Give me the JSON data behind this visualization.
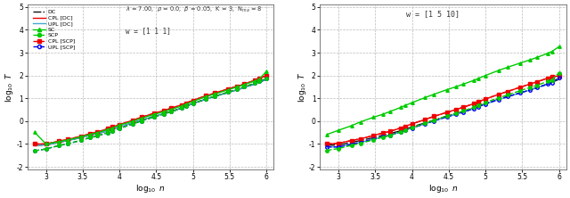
{
  "w_left": "w = [1 1 1]",
  "w_right": "w = [1 5 10]",
  "params_text": "λ = 7.00,  ρ = 0.0,  β = 0.05,  K = 3,  N_ma = 8",
  "xlim": [
    2.75,
    6.1
  ],
  "ylim": [
    -2.1,
    5.1
  ],
  "yticks": [
    -2,
    -1,
    0,
    1,
    2,
    3,
    4,
    5
  ],
  "xticks": [
    3,
    3.5,
    4,
    4.5,
    5,
    5.5,
    6
  ],
  "x_values": [
    2.845,
    3.0,
    3.176,
    3.301,
    3.477,
    3.602,
    3.699,
    3.845,
    3.903,
    4.0,
    4.176,
    4.301,
    4.477,
    4.602,
    4.699,
    4.845,
    4.903,
    5.0,
    5.176,
    5.301,
    5.477,
    5.602,
    5.699,
    5.845,
    5.903,
    6.0
  ],
  "left": {
    "DC": [
      -1.05,
      -1.05,
      -0.93,
      -0.85,
      -0.72,
      -0.62,
      -0.55,
      -0.42,
      -0.36,
      -0.25,
      -0.08,
      0.05,
      0.22,
      0.33,
      0.42,
      0.57,
      0.65,
      0.77,
      0.96,
      1.08,
      1.25,
      1.37,
      1.47,
      1.63,
      1.7,
      1.83
    ],
    "CPL_DC": [
      -1.0,
      -1.0,
      -0.88,
      -0.8,
      -0.66,
      -0.55,
      -0.48,
      -0.33,
      -0.26,
      -0.15,
      0.03,
      0.17,
      0.35,
      0.46,
      0.56,
      0.71,
      0.79,
      0.91,
      1.11,
      1.23,
      1.41,
      1.53,
      1.63,
      1.79,
      1.87,
      2.0
    ],
    "UPL_DC": [
      -1.05,
      -1.05,
      -0.93,
      -0.85,
      -0.72,
      -0.62,
      -0.55,
      -0.42,
      -0.36,
      -0.25,
      -0.08,
      0.05,
      0.22,
      0.33,
      0.42,
      0.57,
      0.65,
      0.77,
      0.96,
      1.08,
      1.25,
      1.37,
      1.47,
      1.63,
      1.7,
      1.83
    ],
    "SC": [
      -0.48,
      -1.0,
      -0.9,
      -0.82,
      -0.69,
      -0.58,
      -0.51,
      -0.36,
      -0.3,
      -0.18,
      -0.01,
      0.13,
      0.3,
      0.41,
      0.51,
      0.66,
      0.74,
      0.86,
      1.07,
      1.19,
      1.37,
      1.5,
      1.6,
      1.76,
      1.84,
      2.18
    ],
    "SCP": [
      -1.3,
      -1.22,
      -1.07,
      -0.99,
      -0.84,
      -0.72,
      -0.65,
      -0.5,
      -0.43,
      -0.32,
      -0.13,
      0.01,
      0.19,
      0.31,
      0.41,
      0.56,
      0.64,
      0.77,
      0.97,
      1.09,
      1.27,
      1.4,
      1.5,
      1.67,
      1.74,
      1.88
    ],
    "CPL_SCP": [
      -1.0,
      -1.0,
      -0.88,
      -0.8,
      -0.66,
      -0.55,
      -0.48,
      -0.33,
      -0.26,
      -0.15,
      0.03,
      0.17,
      0.35,
      0.46,
      0.56,
      0.71,
      0.79,
      0.91,
      1.11,
      1.23,
      1.41,
      1.53,
      1.63,
      1.79,
      1.87,
      2.0
    ],
    "UPL_SCP": [
      -1.3,
      -1.22,
      -1.07,
      -0.99,
      -0.84,
      -0.72,
      -0.65,
      -0.5,
      -0.43,
      -0.32,
      -0.13,
      0.01,
      0.19,
      0.31,
      0.41,
      0.56,
      0.64,
      0.77,
      0.97,
      1.09,
      1.27,
      1.4,
      1.5,
      1.67,
      1.74,
      1.87
    ]
  },
  "right": {
    "DC": [
      -1.05,
      -1.05,
      -0.93,
      -0.85,
      -0.72,
      -0.62,
      -0.55,
      -0.42,
      -0.36,
      -0.25,
      -0.08,
      0.05,
      0.22,
      0.33,
      0.42,
      0.57,
      0.65,
      0.77,
      0.96,
      1.08,
      1.25,
      1.37,
      1.47,
      1.63,
      1.7,
      1.83
    ],
    "CPL_DC": [
      -1.0,
      -0.97,
      -0.85,
      -0.77,
      -0.63,
      -0.52,
      -0.45,
      -0.3,
      -0.23,
      -0.12,
      0.07,
      0.21,
      0.39,
      0.51,
      0.61,
      0.77,
      0.85,
      0.97,
      1.17,
      1.3,
      1.49,
      1.62,
      1.72,
      1.88,
      1.96,
      1.97
    ],
    "UPL_DC": [
      -1.13,
      -1.13,
      -1.01,
      -0.93,
      -0.79,
      -0.69,
      -0.62,
      -0.47,
      -0.41,
      -0.3,
      -0.12,
      0.01,
      0.19,
      0.3,
      0.4,
      0.55,
      0.63,
      0.75,
      0.94,
      1.07,
      1.24,
      1.36,
      1.46,
      1.62,
      1.69,
      1.9
    ],
    "SC": [
      -0.58,
      -0.4,
      -0.2,
      -0.03,
      0.17,
      0.3,
      0.42,
      0.6,
      0.68,
      0.81,
      1.03,
      1.18,
      1.38,
      1.51,
      1.62,
      1.79,
      1.87,
      2.0,
      2.22,
      2.36,
      2.55,
      2.68,
      2.79,
      2.97,
      3.05,
      3.26
    ],
    "SCP": [
      -1.28,
      -1.2,
      -1.06,
      -0.97,
      -0.82,
      -0.7,
      -0.63,
      -0.47,
      -0.4,
      -0.29,
      -0.1,
      0.04,
      0.23,
      0.35,
      0.45,
      0.61,
      0.69,
      0.82,
      1.02,
      1.15,
      1.34,
      1.47,
      1.57,
      1.74,
      1.81,
      2.12
    ],
    "CPL_SCP": [
      -1.0,
      -0.97,
      -0.85,
      -0.77,
      -0.63,
      -0.52,
      -0.45,
      -0.3,
      -0.23,
      -0.12,
      0.07,
      0.21,
      0.39,
      0.51,
      0.61,
      0.77,
      0.85,
      0.97,
      1.17,
      1.3,
      1.49,
      1.62,
      1.72,
      1.88,
      1.96,
      1.97
    ],
    "UPL_SCP": [
      -1.13,
      -1.13,
      -1.01,
      -0.93,
      -0.79,
      -0.69,
      -0.62,
      -0.47,
      -0.41,
      -0.3,
      -0.12,
      0.01,
      0.19,
      0.3,
      0.4,
      0.55,
      0.63,
      0.75,
      0.94,
      1.07,
      1.24,
      1.36,
      1.46,
      1.62,
      1.69,
      1.9
    ]
  },
  "colors": {
    "DC": "#111111",
    "CPL_DC": "#ee0000",
    "UPL_DC": "#44aacc",
    "SC": "#00cc00",
    "SCP": "#00cc00",
    "CPL_SCP": "#ee0000",
    "UPL_SCP": "#0000ee"
  },
  "bg_color": "#ffffff",
  "grid_color": "#aaaaaa"
}
